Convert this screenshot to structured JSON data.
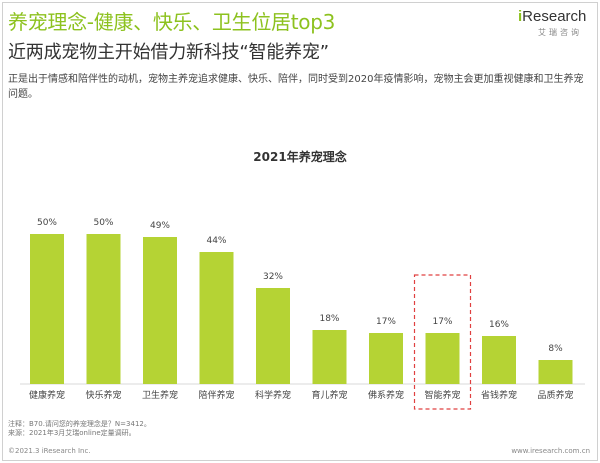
{
  "header": {
    "title": "养宠理念-健康、快乐、卫生位居top3",
    "subtitle": "近两成宠物主开始借力新科技“智能养宠”",
    "description": "正是出于情感和陪伴性的动机，宠物主养宠追求健康、快乐、陪伴，同时受到2020年疫情影响，宠物主会更加重视健康和卫生养宠问题。"
  },
  "logo": {
    "prefix": "i",
    "name": "Research",
    "sub": "艾瑞咨询"
  },
  "chart_data": {
    "type": "bar",
    "title": "2021年养宠理念",
    "categories": [
      "健康养宠",
      "快乐养宠",
      "卫生养宠",
      "陪伴养宠",
      "科学养宠",
      "育儿养宠",
      "佛系养宠",
      "智能养宠",
      "省钱养宠",
      "品质养宠"
    ],
    "values": [
      50,
      50,
      49,
      44,
      32,
      18,
      17,
      17,
      16,
      8
    ],
    "value_labels": [
      "50%",
      "50%",
      "49%",
      "44%",
      "32%",
      "18%",
      "17%",
      "17%",
      "16%",
      "8%"
    ],
    "ylim": [
      0,
      50
    ],
    "highlight_category": "智能养宠",
    "bar_color": "#b5d334",
    "highlight_border_color": "#e04040",
    "grid": false,
    "legend": "none"
  },
  "footer": {
    "note": "注释：B70.请问您的养宠理念是？N=3412。",
    "source": "来源：2021年3月艾瑞online定量调研。",
    "copyright": "©2021.3 iResearch Inc.",
    "url": "www.iresearch.com.cn"
  }
}
